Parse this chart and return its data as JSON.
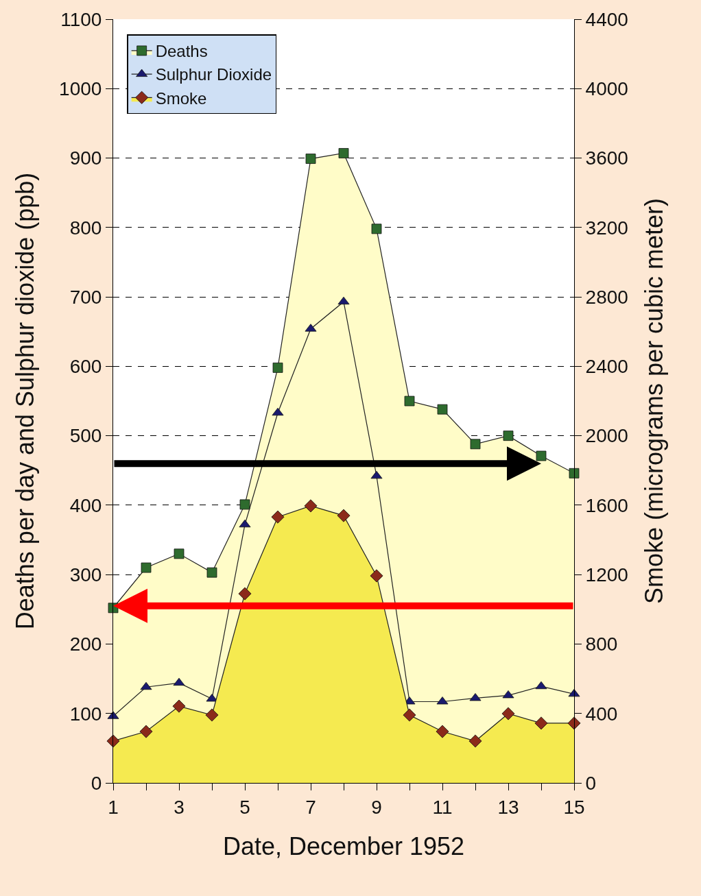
{
  "chart_data": {
    "type": "area",
    "xlabel": "Date, December 1952",
    "ylabel": "Deaths per day and Sulphur dioxide (ppb)",
    "y2label": "Smoke (micrograms per cubic meter)",
    "x": [
      1,
      2,
      3,
      4,
      5,
      6,
      7,
      8,
      9,
      10,
      11,
      12,
      13,
      14,
      15
    ],
    "xlim": [
      1,
      15
    ],
    "xticks": [
      1,
      {
        "value": 2,
        "label": null
      },
      3,
      {
        "value": 4,
        "label": null
      },
      5,
      {
        "value": 6,
        "label": null
      },
      7,
      {
        "value": 8,
        "label": null
      },
      9,
      {
        "value": 10,
        "label": null
      },
      11,
      {
        "value": 12,
        "label": null
      },
      13,
      {
        "value": 14,
        "label": null
      },
      15
    ],
    "ylim": [
      0,
      1100
    ],
    "yticks": [
      0,
      100,
      200,
      300,
      400,
      500,
      600,
      700,
      800,
      900,
      1000,
      1100
    ],
    "y2lim": [
      0,
      4400
    ],
    "y2ticks": [
      0,
      400,
      800,
      1200,
      1600,
      2000,
      2400,
      2800,
      3200,
      3600,
      4000,
      4400
    ],
    "series": [
      {
        "name": "Deaths",
        "color": "#2e6b2e",
        "marker": "square",
        "values": [
          252,
          310,
          330,
          303,
          401,
          598,
          899,
          907,
          798,
          550,
          538,
          488,
          500,
          471,
          446
        ]
      },
      {
        "name": "Sulphur Dioxide",
        "type": "line",
        "color": "#1a1a6e",
        "marker": "triangle",
        "values": [
          96,
          138,
          144,
          121,
          372,
          533,
          654,
          693,
          442,
          117,
          117,
          122,
          126,
          139,
          128
        ]
      },
      {
        "name": "Smoke",
        "color": "#8b2a1a",
        "marker": "diamond",
        "axis": "y2",
        "values": [
          241,
          296,
          442,
          391,
          1090,
          1532,
          1596,
          1540,
          1193,
          391,
          296,
          241,
          399,
          344,
          344
        ]
      }
    ],
    "ref_lines": [
      {
        "axis": "y",
        "value": 460,
        "color": "#000000"
      },
      {
        "axis": "y",
        "value": 255,
        "color": "#ff0000"
      }
    ],
    "grid": "y",
    "legend": "top left"
  }
}
